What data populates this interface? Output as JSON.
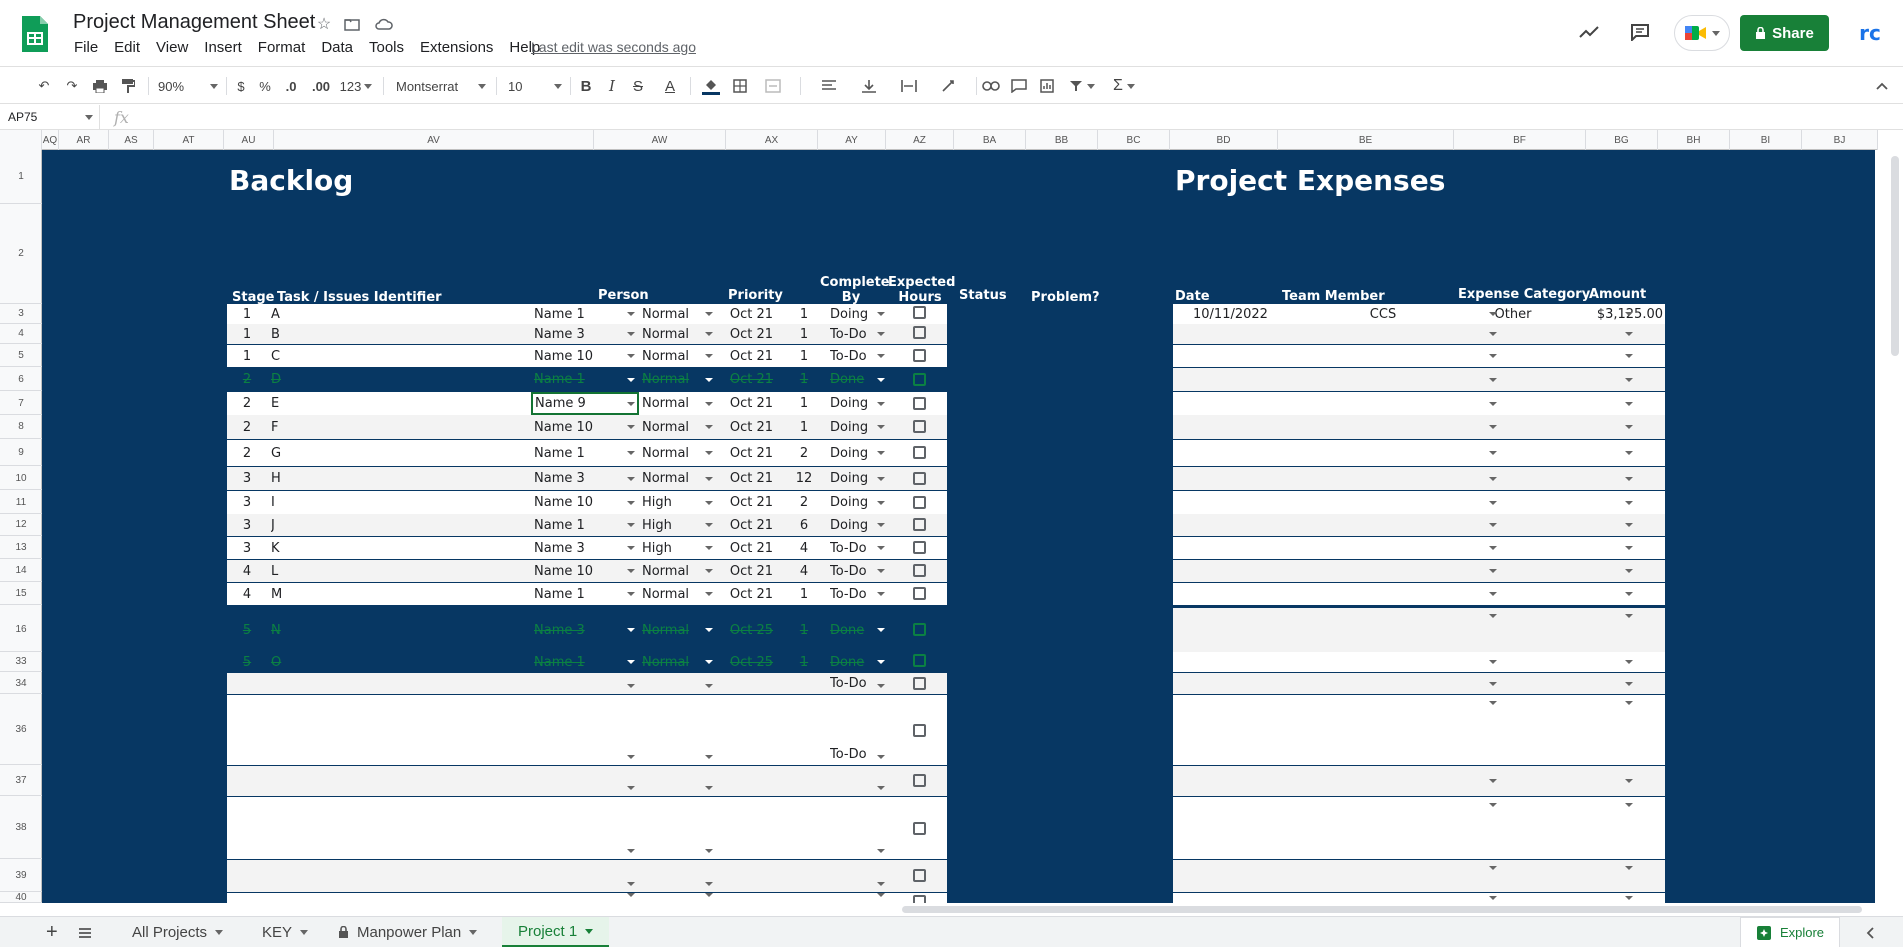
{
  "app": {
    "title": "Project Management Sheet",
    "last_edit": "Last edit was seconds ago"
  },
  "menu": [
    "File",
    "Edit",
    "View",
    "Insert",
    "Format",
    "Data",
    "Tools",
    "Extensions",
    "Help"
  ],
  "header_right": {
    "share": "Share",
    "avatar": "rc"
  },
  "toolbar": {
    "zoom": "90%",
    "currency": "$",
    "percent": "%",
    "dec_dec": ".0",
    "dec_inc": ".00",
    "num_format": "123",
    "font": "Montserrat",
    "font_size": "10",
    "bold": "B",
    "italic": "I",
    "strike": "S",
    "text_color": "A"
  },
  "formula_bar": {
    "name_box": "AP75",
    "fx": "fx",
    "value": ""
  },
  "columns": [
    "AQ",
    "AR",
    "AS",
    "AT",
    "AU",
    "AV",
    "AW",
    "AX",
    "AY",
    "AZ",
    "BA",
    "BB",
    "BC",
    "BD",
    "BE",
    "BF",
    "BG",
    "BH",
    "BI",
    "BJ"
  ],
  "row_numbers": [
    "1",
    "2",
    "3",
    "4",
    "5",
    "6",
    "7",
    "8",
    "9",
    "10",
    "11",
    "12",
    "13",
    "14",
    "15",
    "16",
    "33",
    "34",
    "36",
    "37",
    "38",
    "39",
    "40"
  ],
  "backlog": {
    "title": "Backlog",
    "headers": {
      "stage": "Stage",
      "task": "Task / Issues Identifier",
      "person": "Person",
      "priority": "Priority",
      "complete_by": "Complete By",
      "expected_hours": "Expected Hours",
      "status": "Status",
      "problem": "Problem?"
    },
    "rows": [
      {
        "stage": "1",
        "task": "A",
        "person": "Name 1",
        "priority": "Normal",
        "date": "Oct 21",
        "hours": "1",
        "status": "Doing"
      },
      {
        "stage": "1",
        "task": "B",
        "person": "Name 3",
        "priority": "Normal",
        "date": "Oct 21",
        "hours": "1",
        "status": "To-Do"
      },
      {
        "stage": "1",
        "task": "C",
        "person": "Name 10",
        "priority": "Normal",
        "date": "Oct 21",
        "hours": "1",
        "status": "To-Do"
      },
      {
        "stage": "2",
        "task": "D",
        "person": "Name 1",
        "priority": "Normal",
        "date": "Oct 21",
        "hours": "1",
        "status": "Done"
      },
      {
        "stage": "2",
        "task": "E",
        "person": "Name 9",
        "priority": "Normal",
        "date": "Oct 21",
        "hours": "1",
        "status": "Doing"
      },
      {
        "stage": "2",
        "task": "F",
        "person": "Name 10",
        "priority": "Normal",
        "date": "Oct 21",
        "hours": "1",
        "status": "Doing"
      },
      {
        "stage": "2",
        "task": "G",
        "person": "Name 1",
        "priority": "Normal",
        "date": "Oct 21",
        "hours": "2",
        "status": "Doing"
      },
      {
        "stage": "3",
        "task": "H",
        "person": "Name 3",
        "priority": "Normal",
        "date": "Oct 21",
        "hours": "12",
        "status": "Doing"
      },
      {
        "stage": "3",
        "task": "I",
        "person": "Name 10",
        "priority": "High",
        "date": "Oct 21",
        "hours": "2",
        "status": "Doing"
      },
      {
        "stage": "3",
        "task": "J",
        "person": "Name 1",
        "priority": "High",
        "date": "Oct 21",
        "hours": "6",
        "status": "Doing"
      },
      {
        "stage": "3",
        "task": "K",
        "person": "Name 3",
        "priority": "High",
        "date": "Oct 21",
        "hours": "4",
        "status": "To-Do"
      },
      {
        "stage": "4",
        "task": "L",
        "person": "Name 10",
        "priority": "Normal",
        "date": "Oct 21",
        "hours": "4",
        "status": "To-Do"
      },
      {
        "stage": "4",
        "task": "M",
        "person": "Name 1",
        "priority": "Normal",
        "date": "Oct 21",
        "hours": "1",
        "status": "To-Do"
      },
      {
        "stage": "5",
        "task": "N",
        "person": "Name 3",
        "priority": "Normal",
        "date": "Oct 25",
        "hours": "1",
        "status": "Done"
      },
      {
        "stage": "5",
        "task": "O",
        "person": "Name 1",
        "priority": "Normal",
        "date": "Oct 25",
        "hours": "1",
        "status": "Done"
      },
      {
        "stage": "",
        "task": "",
        "person": "",
        "priority": "",
        "date": "",
        "hours": "",
        "status": "To-Do"
      },
      {
        "stage": "",
        "task": "",
        "person": "",
        "priority": "",
        "date": "",
        "hours": "",
        "status": "To-Do"
      },
      {
        "stage": "",
        "task": "",
        "person": "",
        "priority": "",
        "date": "",
        "hours": "",
        "status": ""
      },
      {
        "stage": "",
        "task": "",
        "person": "",
        "priority": "",
        "date": "",
        "hours": "",
        "status": ""
      },
      {
        "stage": "",
        "task": "",
        "person": "",
        "priority": "",
        "date": "",
        "hours": "",
        "status": ""
      },
      {
        "stage": "",
        "task": "",
        "person": "",
        "priority": "",
        "date": "",
        "hours": "",
        "status": ""
      }
    ]
  },
  "expenses": {
    "title": "Project Expenses",
    "headers": {
      "date": "Date",
      "member": "Team Member",
      "category": "Expense Category",
      "amount": "Amount"
    },
    "rows": [
      {
        "date": "10/11/2022",
        "member": "CCS",
        "category": "Other",
        "amount": "$3,125.00"
      }
    ]
  },
  "sheet_tabs": [
    "All Projects",
    "KEY",
    "Manpower Plan",
    "Project 1"
  ],
  "active_tab": "Project 1",
  "explore": "Explore",
  "colors": {
    "navy": "#073763",
    "share_green": "#188038",
    "active_tab_green": "#188038",
    "done_green": "#0b8043"
  }
}
